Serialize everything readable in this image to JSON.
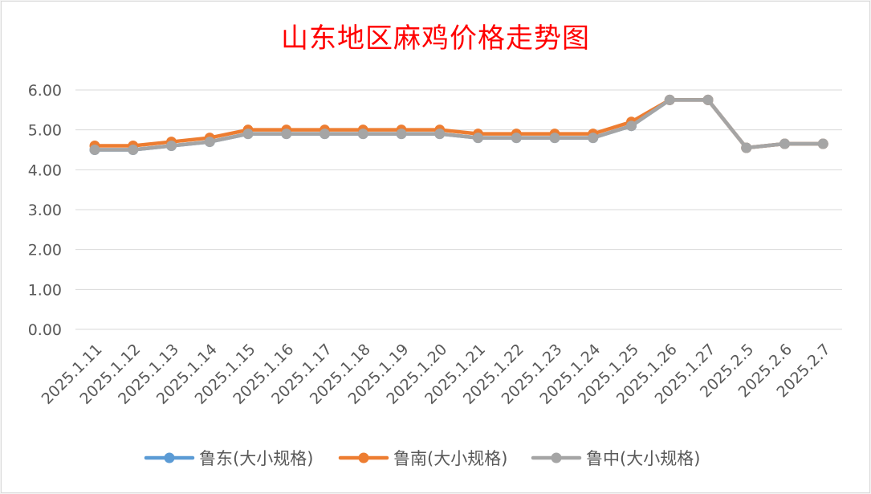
{
  "chart_data": {
    "type": "line",
    "title": "山东地区麻鸡价格走势图",
    "xlabel": "",
    "ylabel": "",
    "ylim": [
      0,
      6
    ],
    "yticks": [
      "0.00",
      "1.00",
      "2.00",
      "3.00",
      "4.00",
      "5.00",
      "6.00"
    ],
    "grid": true,
    "legend_position": "bottom",
    "categories": [
      "2025.1.11",
      "2025.1.12",
      "2025.1.13",
      "2025.1.14",
      "2025.1.15",
      "2025.1.16",
      "2025.1.17",
      "2025.1.18",
      "2025.1.19",
      "2025.1.20",
      "2025.1.21",
      "2025.1.22",
      "2025.1.23",
      "2025.1.24",
      "2025.1.25",
      "2025.1.26",
      "2025.1.27",
      "2025.2.5",
      "2025.2.6",
      "2025.2.7"
    ],
    "series": [
      {
        "name": "鲁东(大小规格)",
        "color": "#5b9bd5",
        "values": [
          4.5,
          4.5,
          4.6,
          4.7,
          4.9,
          4.9,
          4.9,
          4.9,
          4.9,
          4.9,
          4.8,
          4.8,
          4.8,
          4.8,
          5.1,
          5.75,
          5.75,
          4.55,
          4.65,
          4.65
        ]
      },
      {
        "name": "鲁南(大小规格)",
        "color": "#ed7d31",
        "values": [
          4.6,
          4.6,
          4.7,
          4.8,
          5.0,
          5.0,
          5.0,
          5.0,
          5.0,
          5.0,
          4.9,
          4.9,
          4.9,
          4.9,
          5.2,
          5.75,
          5.75,
          4.55,
          4.65,
          4.65
        ]
      },
      {
        "name": "鲁中(大小规格)",
        "color": "#a5a5a5",
        "values": [
          4.5,
          4.5,
          4.6,
          4.7,
          4.9,
          4.9,
          4.9,
          4.9,
          4.9,
          4.9,
          4.8,
          4.8,
          4.8,
          4.8,
          5.1,
          5.75,
          5.75,
          4.55,
          4.65,
          4.65
        ]
      }
    ]
  },
  "colors": {
    "title": "#ff0000",
    "grid": "#d9d9d9",
    "text": "#595959"
  }
}
